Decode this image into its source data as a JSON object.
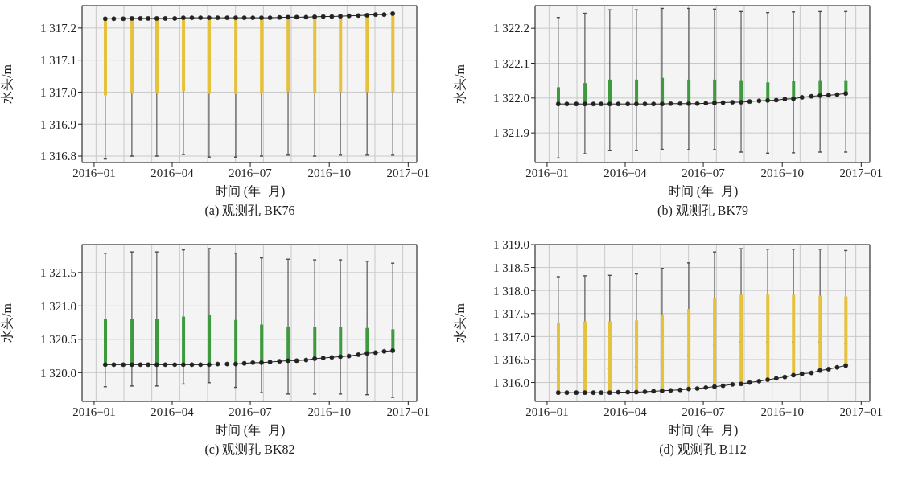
{
  "chart_data": [
    {
      "type": "line",
      "title": "(a) 观测孔 BK76",
      "xlabel": "时间 (年−月)",
      "ylabel": "水头/m",
      "grid": true,
      "marker": "circle",
      "xlim": [
        "2015-12-18",
        "2017-01-11"
      ],
      "xticks": [
        {
          "value": "2016-01",
          "label": "2016−01"
        },
        {
          "value": "2016-04",
          "label": "2016−04"
        },
        {
          "value": "2016-07",
          "label": "2016−07"
        },
        {
          "value": "2016-10",
          "label": "2016−10"
        },
        {
          "value": "2017-01",
          "label": "2017−01"
        }
      ],
      "ylim": [
        1316.78,
        1317.27
      ],
      "yticks": [
        {
          "value": 1316.8,
          "label": "1 316.8"
        },
        {
          "value": 1316.9,
          "label": "1 316.9"
        },
        {
          "value": 1317.0,
          "label": "1 317.0"
        },
        {
          "value": 1317.1,
          "label": "1 317.1"
        },
        {
          "value": 1317.2,
          "label": "1 317.2"
        }
      ],
      "x": [
        "2016-01-14",
        "2016-01-24",
        "2016-02-04",
        "2016-02-14",
        "2016-02-24",
        "2016-03-04",
        "2016-03-14",
        "2016-03-24",
        "2016-04-04",
        "2016-04-14",
        "2016-04-24",
        "2016-05-04",
        "2016-05-14",
        "2016-05-24",
        "2016-06-04",
        "2016-06-14",
        "2016-06-24",
        "2016-07-04",
        "2016-07-14",
        "2016-07-24",
        "2016-08-04",
        "2016-08-14",
        "2016-08-24",
        "2016-09-04",
        "2016-09-14",
        "2016-09-24",
        "2016-10-04",
        "2016-10-14",
        "2016-10-24",
        "2016-11-04",
        "2016-11-14",
        "2016-11-24",
        "2016-12-04",
        "2016-12-14"
      ],
      "series": [
        {
          "type": "bar",
          "color": "#e6c13c",
          "x": [
            "2016-01-14",
            "2016-02-14",
            "2016-03-14",
            "2016-04-14",
            "2016-05-14",
            "2016-06-14",
            "2016-07-14",
            "2016-08-14",
            "2016-09-14",
            "2016-10-14",
            "2016-11-14",
            "2016-12-14"
          ],
          "base": [
            1316.99,
            1316.995,
            1316.998,
            1317.003,
            1316.995,
            1316.994,
            1316.995,
            1317.0,
            1316.998,
            1317.0,
            1317.0,
            1317.0
          ],
          "values": [
            0.239,
            0.235,
            0.232,
            0.229,
            0.237,
            0.238,
            0.237,
            0.234,
            0.237,
            0.237,
            0.24,
            0.245
          ],
          "errors": [
            [
              1316.791,
              1317.229
            ],
            [
              1316.8,
              1317.23
            ],
            [
              1316.8,
              1317.23
            ],
            [
              1316.805,
              1317.232
            ],
            [
              1316.797,
              1317.232
            ],
            [
              1316.797,
              1317.232
            ],
            [
              1316.8,
              1317.232
            ],
            [
              1316.803,
              1317.234
            ],
            [
              1316.8,
              1317.235
            ],
            [
              1316.803,
              1317.237
            ],
            [
              1316.803,
              1317.24
            ],
            [
              1316.803,
              1317.245
            ]
          ]
        },
        {
          "color": "#222222",
          "values": [
            1317.229,
            1317.229,
            1317.229,
            1317.23,
            1317.23,
            1317.23,
            1317.23,
            1317.23,
            1317.23,
            1317.232,
            1317.232,
            1317.232,
            1317.232,
            1317.232,
            1317.232,
            1317.232,
            1317.232,
            1317.232,
            1317.232,
            1317.232,
            1317.233,
            1317.234,
            1317.234,
            1317.234,
            1317.235,
            1317.236,
            1317.236,
            1317.237,
            1317.238,
            1317.239,
            1317.24,
            1317.242,
            1317.242,
            1317.245
          ]
        }
      ]
    },
    {
      "type": "line",
      "title": "(b) 观测孔 BK79",
      "xlabel": "时间 (年−月)",
      "ylabel": "水头/m",
      "grid": true,
      "marker": "circle",
      "xlim": [
        "2015-12-18",
        "2017-01-11"
      ],
      "xticks": [
        {
          "value": "2016-01",
          "label": "2016−01"
        },
        {
          "value": "2016-04",
          "label": "2016−04"
        },
        {
          "value": "2016-07",
          "label": "2016−07"
        },
        {
          "value": "2016-10",
          "label": "2016−10"
        },
        {
          "value": "2017-01",
          "label": "2017−01"
        }
      ],
      "ylim": [
        1321.815,
        1322.265
      ],
      "yticks": [
        {
          "value": 1321.9,
          "label": "1 321.9"
        },
        {
          "value": 1322.0,
          "label": "1 322.0"
        },
        {
          "value": 1322.1,
          "label": "1 322.1"
        },
        {
          "value": 1322.2,
          "label": "1 322.2"
        }
      ],
      "x": [
        "2016-01-14",
        "2016-01-24",
        "2016-02-04",
        "2016-02-14",
        "2016-02-24",
        "2016-03-04",
        "2016-03-14",
        "2016-03-24",
        "2016-04-04",
        "2016-04-14",
        "2016-04-24",
        "2016-05-04",
        "2016-05-14",
        "2016-05-24",
        "2016-06-04",
        "2016-06-14",
        "2016-06-24",
        "2016-07-04",
        "2016-07-14",
        "2016-07-24",
        "2016-08-04",
        "2016-08-14",
        "2016-08-24",
        "2016-09-04",
        "2016-09-14",
        "2016-09-24",
        "2016-10-04",
        "2016-10-14",
        "2016-10-24",
        "2016-11-04",
        "2016-11-14",
        "2016-11-24",
        "2016-12-04",
        "2016-12-14"
      ],
      "series": [
        {
          "type": "bar",
          "color": "#3f9a3f",
          "x": [
            "2016-01-14",
            "2016-02-14",
            "2016-03-14",
            "2016-04-14",
            "2016-05-14",
            "2016-06-14",
            "2016-07-14",
            "2016-08-14",
            "2016-09-14",
            "2016-10-14",
            "2016-11-14",
            "2016-12-14"
          ],
          "base": [
            1321.983,
            1321.983,
            1321.983,
            1321.983,
            1321.983,
            1321.984,
            1321.986,
            1321.988,
            1321.993,
            1321.998,
            1322.007,
            1322.013
          ],
          "values": [
            0.048,
            0.06,
            0.07,
            0.07,
            0.075,
            0.069,
            0.067,
            0.061,
            0.052,
            0.05,
            0.042,
            0.036
          ],
          "errors": [
            [
              1321.828,
              1322.231
            ],
            [
              1321.84,
              1322.243
            ],
            [
              1321.849,
              1322.253
            ],
            [
              1321.849,
              1322.253
            ],
            [
              1321.853,
              1322.257
            ],
            [
              1321.852,
              1322.257
            ],
            [
              1321.852,
              1322.255
            ],
            [
              1321.845,
              1322.248
            ],
            [
              1321.842,
              1322.245
            ],
            [
              1321.843,
              1322.247
            ],
            [
              1321.845,
              1322.248
            ],
            [
              1321.845,
              1322.248
            ]
          ]
        },
        {
          "color": "#222222",
          "values": [
            1321.983,
            1321.983,
            1321.983,
            1321.983,
            1321.983,
            1321.983,
            1321.983,
            1321.983,
            1321.983,
            1321.983,
            1321.983,
            1321.983,
            1321.983,
            1321.984,
            1321.984,
            1321.984,
            1321.984,
            1321.985,
            1321.986,
            1321.987,
            1321.988,
            1321.988,
            1321.99,
            1321.992,
            1321.993,
            1321.994,
            1321.997,
            1321.998,
            1322.002,
            1322.005,
            1322.007,
            1322.008,
            1322.01,
            1322.013
          ]
        }
      ]
    },
    {
      "type": "line",
      "title": "(c) 观测孔 BK82",
      "xlabel": "时间 (年−月)",
      "ylabel": "水头/m",
      "grid": true,
      "marker": "circle",
      "xlim": [
        "2015-12-18",
        "2017-01-11"
      ],
      "xticks": [
        {
          "value": "2016-01",
          "label": "2016−01"
        },
        {
          "value": "2016-04",
          "label": "2016−04"
        },
        {
          "value": "2016-07",
          "label": "2016−07"
        },
        {
          "value": "2016-10",
          "label": "2016−10"
        },
        {
          "value": "2017-01",
          "label": "2017−01"
        }
      ],
      "ylim": [
        1319.57,
        1321.92
      ],
      "yticks": [
        {
          "value": 1320.0,
          "label": "1 320.0"
        },
        {
          "value": 1320.5,
          "label": "1 320.5"
        },
        {
          "value": 1321.0,
          "label": "1 321.0"
        },
        {
          "value": 1321.5,
          "label": "1 321.5"
        }
      ],
      "x": [
        "2016-01-14",
        "2016-01-24",
        "2016-02-04",
        "2016-02-14",
        "2016-02-24",
        "2016-03-04",
        "2016-03-14",
        "2016-03-24",
        "2016-04-04",
        "2016-04-14",
        "2016-04-24",
        "2016-05-04",
        "2016-05-14",
        "2016-05-24",
        "2016-06-04",
        "2016-06-14",
        "2016-06-24",
        "2016-07-04",
        "2016-07-14",
        "2016-07-24",
        "2016-08-04",
        "2016-08-14",
        "2016-08-24",
        "2016-09-04",
        "2016-09-14",
        "2016-09-24",
        "2016-10-04",
        "2016-10-14",
        "2016-10-24",
        "2016-11-04",
        "2016-11-14",
        "2016-11-24",
        "2016-12-04",
        "2016-12-14"
      ],
      "series": [
        {
          "type": "bar",
          "color": "#3f9a3f",
          "x": [
            "2016-01-14",
            "2016-02-14",
            "2016-03-14",
            "2016-04-14",
            "2016-05-14",
            "2016-06-14",
            "2016-07-14",
            "2016-08-14",
            "2016-09-14",
            "2016-10-14",
            "2016-11-14",
            "2016-12-14"
          ],
          "base": [
            1320.12,
            1320.12,
            1320.12,
            1320.12,
            1320.12,
            1320.13,
            1320.15,
            1320.18,
            1320.21,
            1320.24,
            1320.29,
            1320.33
          ],
          "values": [
            0.68,
            0.69,
            0.69,
            0.72,
            0.74,
            0.66,
            0.57,
            0.5,
            0.47,
            0.44,
            0.38,
            0.32
          ],
          "errors": [
            [
              1319.79,
              1321.79
            ],
            [
              1319.8,
              1321.81
            ],
            [
              1319.8,
              1321.81
            ],
            [
              1319.83,
              1321.84
            ],
            [
              1319.85,
              1321.86
            ],
            [
              1319.78,
              1321.79
            ],
            [
              1319.7,
              1321.72
            ],
            [
              1319.68,
              1321.7
            ],
            [
              1319.68,
              1321.69
            ],
            [
              1319.68,
              1321.69
            ],
            [
              1319.67,
              1321.67
            ],
            [
              1319.63,
              1321.64
            ]
          ]
        },
        {
          "color": "#222222",
          "values": [
            1320.12,
            1320.12,
            1320.12,
            1320.12,
            1320.12,
            1320.12,
            1320.12,
            1320.12,
            1320.12,
            1320.12,
            1320.12,
            1320.12,
            1320.12,
            1320.13,
            1320.13,
            1320.13,
            1320.14,
            1320.15,
            1320.15,
            1320.16,
            1320.17,
            1320.18,
            1320.18,
            1320.19,
            1320.21,
            1320.22,
            1320.23,
            1320.24,
            1320.25,
            1320.27,
            1320.29,
            1320.3,
            1320.32,
            1320.33
          ]
        }
      ]
    },
    {
      "type": "line",
      "title": "(d) 观测孔 B112",
      "xlabel": "时间 (年−月)",
      "ylabel": "水头/m",
      "grid": true,
      "marker": "circle",
      "xlim": [
        "2015-12-18",
        "2017-01-11"
      ],
      "xticks": [
        {
          "value": "2016-01",
          "label": "2016−01"
        },
        {
          "value": "2016-04",
          "label": "2016−04"
        },
        {
          "value": "2016-07",
          "label": "2016−07"
        },
        {
          "value": "2016-10",
          "label": "2016−10"
        },
        {
          "value": "2017-01",
          "label": "2017−01"
        }
      ],
      "ylim": [
        1315.59,
        1319.0
      ],
      "yticks": [
        {
          "value": 1316.0,
          "label": "1 316.0"
        },
        {
          "value": 1316.5,
          "label": "1 316.5"
        },
        {
          "value": 1317.0,
          "label": "1 317.0"
        },
        {
          "value": 1317.5,
          "label": "1 317.5"
        },
        {
          "value": 1318.0,
          "label": "1 318.0"
        },
        {
          "value": 1318.5,
          "label": "1 318.5"
        },
        {
          "value": 1319.0,
          "label": "1 319.0"
        }
      ],
      "x": [
        "2016-01-14",
        "2016-01-24",
        "2016-02-04",
        "2016-02-14",
        "2016-02-24",
        "2016-03-04",
        "2016-03-14",
        "2016-03-24",
        "2016-04-04",
        "2016-04-14",
        "2016-04-24",
        "2016-05-04",
        "2016-05-14",
        "2016-05-24",
        "2016-06-04",
        "2016-06-14",
        "2016-06-24",
        "2016-07-04",
        "2016-07-14",
        "2016-07-24",
        "2016-08-04",
        "2016-08-14",
        "2016-08-24",
        "2016-09-04",
        "2016-09-14",
        "2016-09-24",
        "2016-10-04",
        "2016-10-14",
        "2016-10-24",
        "2016-11-04",
        "2016-11-14",
        "2016-11-24",
        "2016-12-04",
        "2016-12-14"
      ],
      "series": [
        {
          "type": "bar",
          "color": "#e6c13c",
          "x": [
            "2016-01-14",
            "2016-02-14",
            "2016-03-14",
            "2016-04-14",
            "2016-05-14",
            "2016-06-14",
            "2016-07-14",
            "2016-08-14",
            "2016-09-14",
            "2016-10-14",
            "2016-11-14",
            "2016-12-14"
          ],
          "base": [
            1315.78,
            1315.78,
            1315.78,
            1315.79,
            1315.82,
            1315.86,
            1315.91,
            1315.97,
            1316.06,
            1316.16,
            1316.26,
            1316.37
          ],
          "values": [
            1.52,
            1.55,
            1.55,
            1.56,
            1.66,
            1.74,
            1.93,
            1.94,
            1.85,
            1.75,
            1.63,
            1.5
          ],
          "errors": [
            [
              1316.29,
              1318.3
            ],
            [
              1316.3,
              1318.32
            ],
            [
              1316.3,
              1318.33
            ],
            [
              1316.33,
              1318.36
            ],
            [
              1316.45,
              1318.48
            ],
            [
              1316.59,
              1318.6
            ],
            [
              1316.81,
              1318.84
            ],
            [
              1316.88,
              1318.91
            ],
            [
              1316.88,
              1318.9
            ],
            [
              1316.88,
              1318.9
            ],
            [
              1316.88,
              1318.9
            ],
            [
              1316.85,
              1318.87
            ]
          ]
        },
        {
          "color": "#222222",
          "values": [
            1315.78,
            1315.78,
            1315.78,
            1315.78,
            1315.78,
            1315.78,
            1315.78,
            1315.79,
            1315.79,
            1315.79,
            1315.8,
            1315.81,
            1315.82,
            1315.83,
            1315.84,
            1315.86,
            1315.87,
            1315.89,
            1315.91,
            1315.93,
            1315.96,
            1315.97,
            1316.0,
            1316.03,
            1316.06,
            1316.09,
            1316.12,
            1316.16,
            1316.19,
            1316.21,
            1316.26,
            1316.29,
            1316.33,
            1316.37
          ]
        }
      ]
    }
  ]
}
